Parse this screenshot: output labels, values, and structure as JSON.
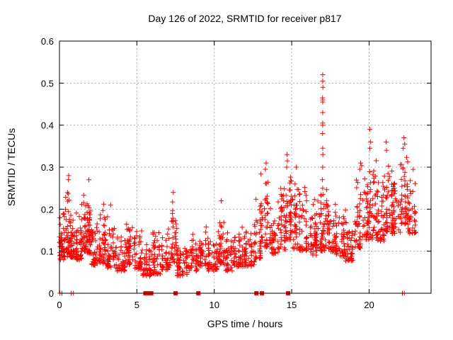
{
  "chart_data": {
    "type": "scatter",
    "title": "Day 126 of 2022, SRMTID for receiver p817",
    "xlabel": "GPS time / hours",
    "ylabel": "SRMTID / TECUs",
    "xlim": [
      0,
      24
    ],
    "ylim": [
      0,
      0.6
    ],
    "xticks": [
      0,
      5,
      10,
      15,
      20
    ],
    "xtick_labels": [
      "0",
      "5",
      "10",
      "15",
      "20"
    ],
    "yticks": [
      0,
      0.1,
      0.2,
      0.3,
      0.4,
      0.5,
      0.6
    ],
    "ytick_labels": [
      "0",
      "0.1",
      "0.2",
      "0.3",
      "0.4",
      "0.5",
      "0.6"
    ],
    "grid": true,
    "grid_style": "dashed",
    "grid_color": "#a9a9a9",
    "legend": "none",
    "marker": "plus",
    "marker_color": "#ff0000",
    "series_name": "SRMTID",
    "density_segments": [
      [
        0.0,
        0.3,
        40,
        0.06,
        0.22
      ],
      [
        0.3,
        0.7,
        45,
        0.06,
        0.28
      ],
      [
        0.7,
        1.1,
        45,
        0.07,
        0.2
      ],
      [
        1.1,
        1.5,
        42,
        0.06,
        0.22
      ],
      [
        1.5,
        1.8,
        36,
        0.08,
        0.24
      ],
      [
        1.8,
        2.1,
        42,
        0.07,
        0.27
      ],
      [
        2.1,
        2.6,
        45,
        0.05,
        0.18
      ],
      [
        2.6,
        3.1,
        45,
        0.05,
        0.22
      ],
      [
        3.1,
        3.6,
        45,
        0.04,
        0.21
      ],
      [
        3.6,
        4.3,
        54,
        0.04,
        0.15
      ],
      [
        4.3,
        4.8,
        42,
        0.05,
        0.19
      ],
      [
        4.8,
        5.4,
        45,
        0.04,
        0.18
      ],
      [
        5.4,
        6.0,
        45,
        0.03,
        0.12
      ],
      [
        6.0,
        6.6,
        45,
        0.03,
        0.16
      ],
      [
        6.6,
        7.2,
        45,
        0.04,
        0.17
      ],
      [
        7.2,
        7.6,
        36,
        0.05,
        0.24
      ],
      [
        7.6,
        8.4,
        54,
        0.03,
        0.13
      ],
      [
        8.4,
        9.0,
        45,
        0.04,
        0.15
      ],
      [
        9.0,
        9.6,
        45,
        0.05,
        0.17
      ],
      [
        9.6,
        10.2,
        45,
        0.04,
        0.15
      ],
      [
        10.2,
        10.6,
        36,
        0.05,
        0.22
      ],
      [
        10.6,
        11.2,
        45,
        0.04,
        0.15
      ],
      [
        11.2,
        11.9,
        50,
        0.05,
        0.16
      ],
      [
        11.9,
        12.6,
        50,
        0.05,
        0.17
      ],
      [
        12.6,
        13.0,
        36,
        0.06,
        0.24
      ],
      [
        13.0,
        13.6,
        45,
        0.08,
        0.31
      ],
      [
        13.6,
        14.2,
        45,
        0.07,
        0.26
      ],
      [
        14.2,
        14.6,
        36,
        0.08,
        0.28
      ],
      [
        14.6,
        15.0,
        42,
        0.1,
        0.33
      ],
      [
        15.0,
        15.5,
        42,
        0.08,
        0.3
      ],
      [
        15.5,
        16.0,
        42,
        0.08,
        0.26
      ],
      [
        16.0,
        16.6,
        45,
        0.07,
        0.24
      ],
      [
        16.6,
        17.0,
        33,
        0.08,
        0.25
      ],
      [
        17.0,
        17.4,
        39,
        0.08,
        0.26
      ],
      [
        17.4,
        17.9,
        42,
        0.08,
        0.24
      ],
      [
        17.9,
        18.5,
        45,
        0.07,
        0.22
      ],
      [
        18.5,
        19.0,
        42,
        0.06,
        0.2
      ],
      [
        19.0,
        19.5,
        42,
        0.08,
        0.31
      ],
      [
        19.5,
        20.0,
        42,
        0.1,
        0.33
      ],
      [
        20.0,
        20.5,
        42,
        0.1,
        0.34
      ],
      [
        20.5,
        21.0,
        45,
        0.1,
        0.3
      ],
      [
        21.0,
        21.5,
        45,
        0.12,
        0.33
      ],
      [
        21.5,
        22.0,
        45,
        0.12,
        0.3
      ],
      [
        22.0,
        22.5,
        48,
        0.14,
        0.34
      ],
      [
        22.5,
        23.0,
        39,
        0.12,
        0.3
      ]
    ],
    "outlier_points": [
      [
        17.0,
        0.52
      ],
      [
        17.0,
        0.505
      ],
      [
        17.01,
        0.49
      ],
      [
        16.99,
        0.465
      ],
      [
        17.0,
        0.46
      ],
      [
        17.0,
        0.455
      ],
      [
        17.0,
        0.43
      ],
      [
        17.0,
        0.405
      ],
      [
        17.0,
        0.4
      ],
      [
        16.99,
        0.38
      ],
      [
        17.0,
        0.345
      ],
      [
        17.01,
        0.33
      ],
      [
        17.0,
        0.3
      ],
      [
        16.98,
        0.27
      ],
      [
        17.0,
        0.25
      ],
      [
        17.02,
        0.235
      ],
      [
        20.05,
        0.39
      ],
      [
        20.1,
        0.36
      ],
      [
        20.05,
        0.345
      ],
      [
        21.1,
        0.36
      ],
      [
        21.12,
        0.34
      ],
      [
        22.25,
        0.37
      ],
      [
        22.3,
        0.355
      ],
      [
        22.2,
        0.345
      ],
      [
        14.7,
        0.33
      ],
      [
        14.72,
        0.315
      ],
      [
        14.68,
        0.3
      ],
      [
        13.35,
        0.31
      ],
      [
        13.3,
        0.295
      ],
      [
        19.45,
        0.31
      ],
      [
        19.4,
        0.295
      ],
      [
        15.3,
        0.3
      ],
      [
        0.6,
        0.28
      ],
      [
        0.58,
        0.27
      ],
      [
        1.9,
        0.27
      ],
      [
        10.45,
        0.22
      ],
      [
        7.35,
        0.24
      ],
      [
        3.3,
        0.21
      ]
    ],
    "baseline_square_hours": [
      5.55,
      5.68,
      5.93,
      7.5,
      8.97,
      12.72,
      13.08,
      14.77
    ],
    "baseline_plus_hours": [
      0.03,
      0.16,
      0.76,
      0.9,
      22.15,
      22.27
    ]
  }
}
